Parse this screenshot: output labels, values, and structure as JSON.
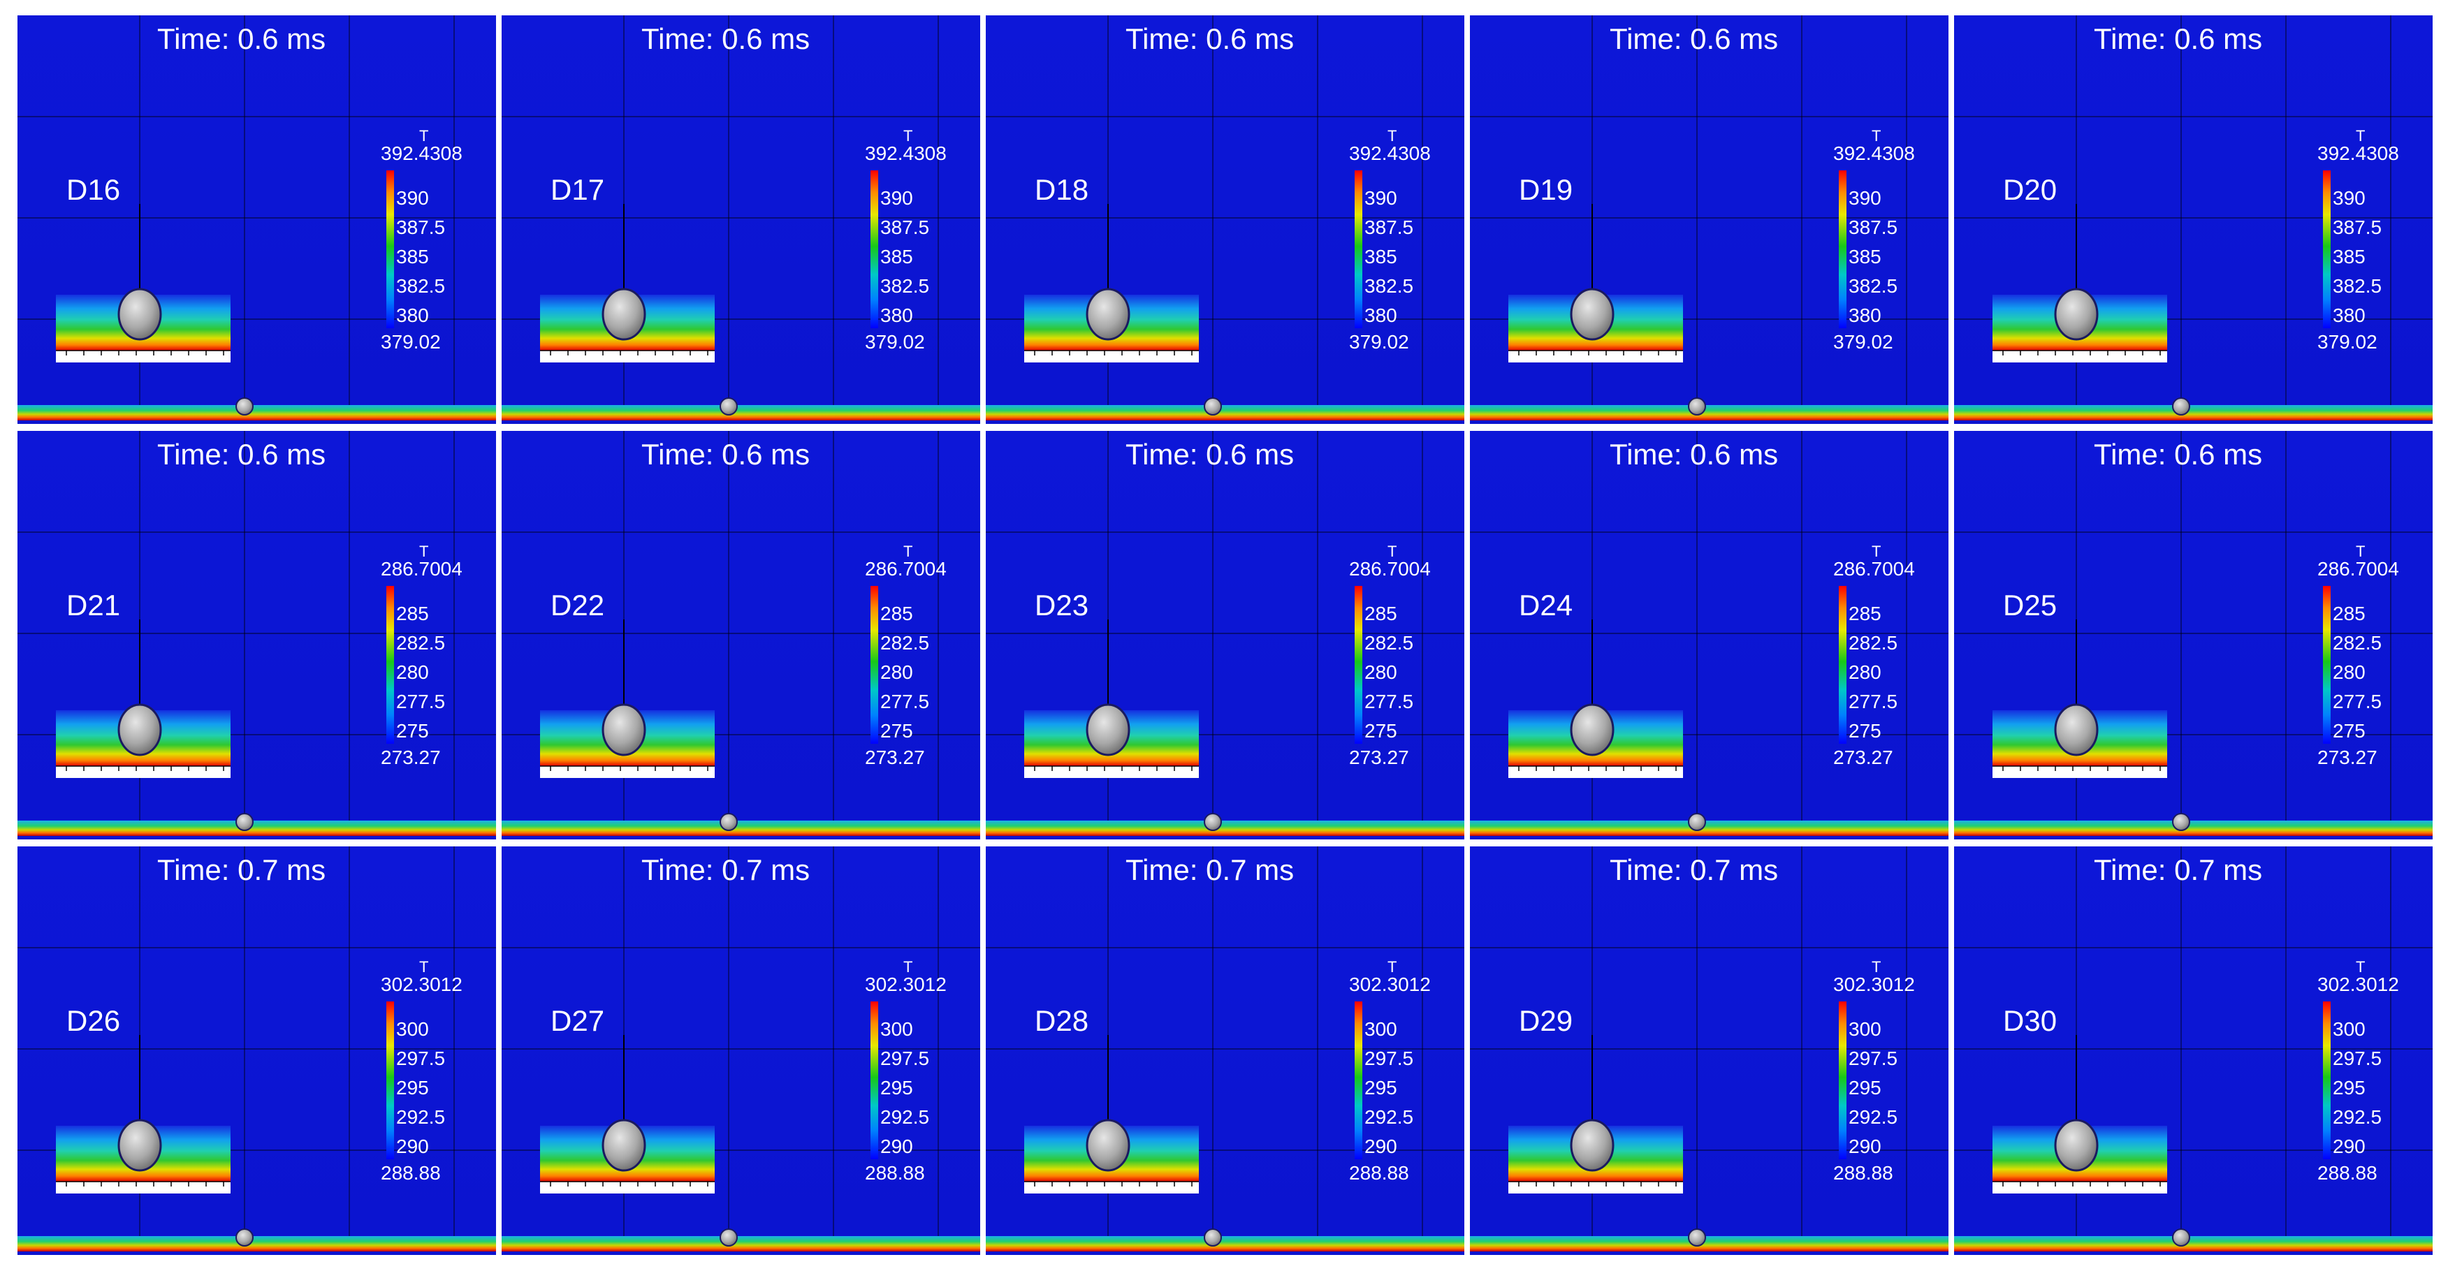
{
  "panels": [
    {
      "label": "D16",
      "time": "Time: 0.6 ms",
      "colorbar": {
        "title": "T",
        "max": "392.4308",
        "ticks": [
          "390",
          "387.5",
          "385",
          "382.5",
          "380"
        ],
        "min": "379.02"
      }
    },
    {
      "label": "D17",
      "time": "Time: 0.6 ms",
      "colorbar": {
        "title": "T",
        "max": "392.4308",
        "ticks": [
          "390",
          "387.5",
          "385",
          "382.5",
          "380"
        ],
        "min": "379.02"
      }
    },
    {
      "label": "D18",
      "time": "Time: 0.6 ms",
      "colorbar": {
        "title": "T",
        "max": "392.4308",
        "ticks": [
          "390",
          "387.5",
          "385",
          "382.5",
          "380"
        ],
        "min": "379.02"
      }
    },
    {
      "label": "D19",
      "time": "Time: 0.6 ms",
      "colorbar": {
        "title": "T",
        "max": "392.4308",
        "ticks": [
          "390",
          "387.5",
          "385",
          "382.5",
          "380"
        ],
        "min": "379.02"
      }
    },
    {
      "label": "D20",
      "time": "Time: 0.6 ms",
      "colorbar": {
        "title": "T",
        "max": "392.4308",
        "ticks": [
          "390",
          "387.5",
          "385",
          "382.5",
          "380"
        ],
        "min": "379.02"
      }
    },
    {
      "label": "D21",
      "time": "Time: 0.6 ms",
      "colorbar": {
        "title": "T",
        "max": "286.7004",
        "ticks": [
          "285",
          "282.5",
          "280",
          "277.5",
          "275"
        ],
        "min": "273.27"
      }
    },
    {
      "label": "D22",
      "time": "Time: 0.6 ms",
      "colorbar": {
        "title": "T",
        "max": "286.7004",
        "ticks": [
          "285",
          "282.5",
          "280",
          "277.5",
          "275"
        ],
        "min": "273.27"
      }
    },
    {
      "label": "D23",
      "time": "Time: 0.6 ms",
      "colorbar": {
        "title": "T",
        "max": "286.7004",
        "ticks": [
          "285",
          "282.5",
          "280",
          "277.5",
          "275"
        ],
        "min": "273.27"
      }
    },
    {
      "label": "D24",
      "time": "Time: 0.6 ms",
      "colorbar": {
        "title": "T",
        "max": "286.7004",
        "ticks": [
          "285",
          "282.5",
          "280",
          "277.5",
          "275"
        ],
        "min": "273.27"
      }
    },
    {
      "label": "D25",
      "time": "Time: 0.6 ms",
      "colorbar": {
        "title": "T",
        "max": "286.7004",
        "ticks": [
          "285",
          "282.5",
          "280",
          "277.5",
          "275"
        ],
        "min": "273.27"
      }
    },
    {
      "label": "D26",
      "time": "Time: 0.7 ms",
      "colorbar": {
        "title": "T",
        "max": "302.3012",
        "ticks": [
          "300",
          "297.5",
          "295",
          "292.5",
          "290"
        ],
        "min": "288.88"
      }
    },
    {
      "label": "D27",
      "time": "Time: 0.7 ms",
      "colorbar": {
        "title": "T",
        "max": "302.3012",
        "ticks": [
          "300",
          "297.5",
          "295",
          "292.5",
          "290"
        ],
        "min": "288.88"
      }
    },
    {
      "label": "D28",
      "time": "Time: 0.7 ms",
      "colorbar": {
        "title": "T",
        "max": "302.3012",
        "ticks": [
          "300",
          "297.5",
          "295",
          "292.5",
          "290"
        ],
        "min": "288.88"
      }
    },
    {
      "label": "D29",
      "time": "Time: 0.7 ms",
      "colorbar": {
        "title": "T",
        "max": "302.3012",
        "ticks": [
          "300",
          "297.5",
          "295",
          "292.5",
          "290"
        ],
        "min": "288.88"
      }
    },
    {
      "label": "D30",
      "time": "Time: 0.7 ms",
      "colorbar": {
        "title": "T",
        "max": "302.3012",
        "ticks": [
          "300",
          "297.5",
          "295",
          "292.5",
          "290"
        ],
        "min": "288.88"
      }
    }
  ]
}
